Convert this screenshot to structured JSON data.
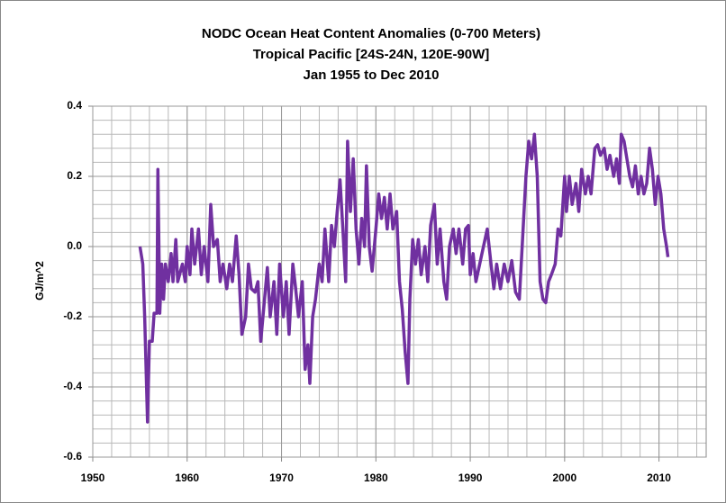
{
  "chart_data": {
    "type": "line",
    "title": [
      "NODC Ocean Heat Content Anomalies (0-700 Meters)",
      "Tropical Pacific [24S-24N, 120E-90W]",
      "Jan 1955 to Dec 2010"
    ],
    "y_label": "GJ/m^2",
    "color": "#7030a0",
    "xlim": [
      1950,
      2015
    ],
    "xticks": [
      1950,
      1960,
      1970,
      1980,
      1990,
      2000,
      2010
    ],
    "ylim": [
      -0.6,
      0.4
    ],
    "yticks": [
      0.4,
      0.2,
      {
        "value": 0,
        "label": "0.0"
      },
      -0.2,
      -0.4,
      -0.6
    ],
    "grid": true,
    "x": [
      1955.0,
      1955.3,
      1955.5,
      1955.8,
      1956.0,
      1956.3,
      1956.5,
      1956.8,
      1956.9,
      1957.1,
      1957.3,
      1957.5,
      1957.7,
      1958.0,
      1958.3,
      1958.5,
      1958.8,
      1959.0,
      1959.5,
      1959.8,
      1960.0,
      1960.3,
      1960.5,
      1960.8,
      1961.2,
      1961.5,
      1961.8,
      1962.2,
      1962.5,
      1962.8,
      1963.2,
      1963.5,
      1963.8,
      1964.2,
      1964.5,
      1964.8,
      1965.2,
      1965.5,
      1965.8,
      1966.2,
      1966.5,
      1966.8,
      1967.2,
      1967.5,
      1967.8,
      1968.2,
      1968.5,
      1968.8,
      1969.2,
      1969.5,
      1969.8,
      1970.2,
      1970.5,
      1970.8,
      1971.2,
      1971.5,
      1971.8,
      1972.2,
      1972.5,
      1972.8,
      1973.0,
      1973.3,
      1973.6,
      1974.0,
      1974.3,
      1974.6,
      1975.0,
      1975.3,
      1975.6,
      1975.9,
      1976.2,
      1976.5,
      1976.8,
      1977.0,
      1977.3,
      1977.6,
      1977.9,
      1978.2,
      1978.5,
      1978.8,
      1979.0,
      1979.3,
      1979.6,
      1980.0,
      1980.3,
      1980.6,
      1980.9,
      1981.2,
      1981.5,
      1981.8,
      1982.2,
      1982.5,
      1982.8,
      1983.1,
      1983.4,
      1983.6,
      1983.9,
      1984.2,
      1984.5,
      1984.8,
      1985.2,
      1985.5,
      1985.8,
      1986.2,
      1986.5,
      1986.8,
      1987.2,
      1987.5,
      1987.8,
      1988.2,
      1988.5,
      1988.8,
      1989.2,
      1989.5,
      1989.8,
      1990.0,
      1990.3,
      1990.6,
      1991.0,
      1991.4,
      1991.8,
      1992.2,
      1992.5,
      1992.8,
      1993.2,
      1993.6,
      1994.0,
      1994.4,
      1994.8,
      1995.2,
      1995.6,
      1995.9,
      1996.2,
      1996.5,
      1996.8,
      1997.1,
      1997.4,
      1997.7,
      1998.0,
      1998.3,
      1998.6,
      1999.0,
      1999.3,
      1999.6,
      2000.0,
      2000.2,
      2000.5,
      2000.8,
      2001.2,
      2001.5,
      2001.8,
      2002.2,
      2002.5,
      2002.8,
      2003.2,
      2003.5,
      2003.8,
      2004.2,
      2004.5,
      2004.8,
      2005.2,
      2005.5,
      2005.8,
      2006.0,
      2006.3,
      2006.6,
      2006.9,
      2007.2,
      2007.5,
      2007.8,
      2008.1,
      2008.4,
      2008.7,
      2009.0,
      2009.3,
      2009.6,
      2009.9,
      2010.2,
      2010.5,
      2010.8,
      2010.95
    ],
    "values": [
      0.0,
      -0.05,
      -0.2,
      -0.5,
      -0.27,
      -0.27,
      -0.19,
      -0.19,
      0.22,
      -0.19,
      -0.05,
      -0.15,
      -0.05,
      -0.1,
      -0.02,
      -0.1,
      0.02,
      -0.1,
      -0.05,
      -0.1,
      0.0,
      -0.08,
      0.05,
      -0.05,
      0.05,
      -0.08,
      0.0,
      -0.1,
      0.12,
      0.0,
      0.02,
      -0.1,
      -0.05,
      -0.12,
      -0.05,
      -0.1,
      0.03,
      -0.08,
      -0.25,
      -0.2,
      -0.05,
      -0.12,
      -0.13,
      -0.1,
      -0.27,
      -0.15,
      -0.06,
      -0.2,
      -0.1,
      -0.25,
      -0.05,
      -0.2,
      -0.1,
      -0.25,
      -0.05,
      -0.12,
      -0.2,
      -0.1,
      -0.35,
      -0.28,
      -0.39,
      -0.2,
      -0.15,
      -0.05,
      -0.1,
      0.05,
      -0.1,
      0.06,
      0.0,
      0.1,
      0.19,
      0.05,
      -0.1,
      0.3,
      0.1,
      0.25,
      0.05,
      -0.05,
      0.08,
      0.0,
      0.23,
      0.0,
      -0.07,
      0.05,
      0.15,
      0.08,
      0.14,
      0.05,
      0.15,
      0.05,
      0.1,
      -0.1,
      -0.18,
      -0.3,
      -0.39,
      -0.15,
      0.02,
      -0.05,
      0.02,
      -0.08,
      0.0,
      -0.1,
      0.06,
      0.12,
      -0.05,
      0.05,
      -0.1,
      -0.15,
      0.0,
      0.05,
      -0.02,
      0.05,
      -0.05,
      0.05,
      0.06,
      -0.08,
      -0.02,
      -0.1,
      -0.05,
      0.0,
      0.05,
      -0.05,
      -0.12,
      -0.05,
      -0.12,
      -0.05,
      -0.1,
      -0.04,
      -0.13,
      -0.15,
      0.05,
      0.2,
      0.3,
      0.25,
      0.32,
      0.2,
      -0.1,
      -0.15,
      -0.16,
      -0.1,
      -0.08,
      -0.05,
      0.05,
      0.03,
      0.2,
      0.1,
      0.2,
      0.12,
      0.18,
      0.1,
      0.22,
      0.15,
      0.2,
      0.15,
      0.28,
      0.29,
      0.26,
      0.28,
      0.22,
      0.26,
      0.2,
      0.25,
      0.18,
      0.32,
      0.3,
      0.25,
      0.2,
      0.17,
      0.23,
      0.15,
      0.2,
      0.15,
      0.18,
      0.28,
      0.22,
      0.12,
      0.2,
      0.15,
      0.05,
      0.0,
      -0.03
    ]
  }
}
